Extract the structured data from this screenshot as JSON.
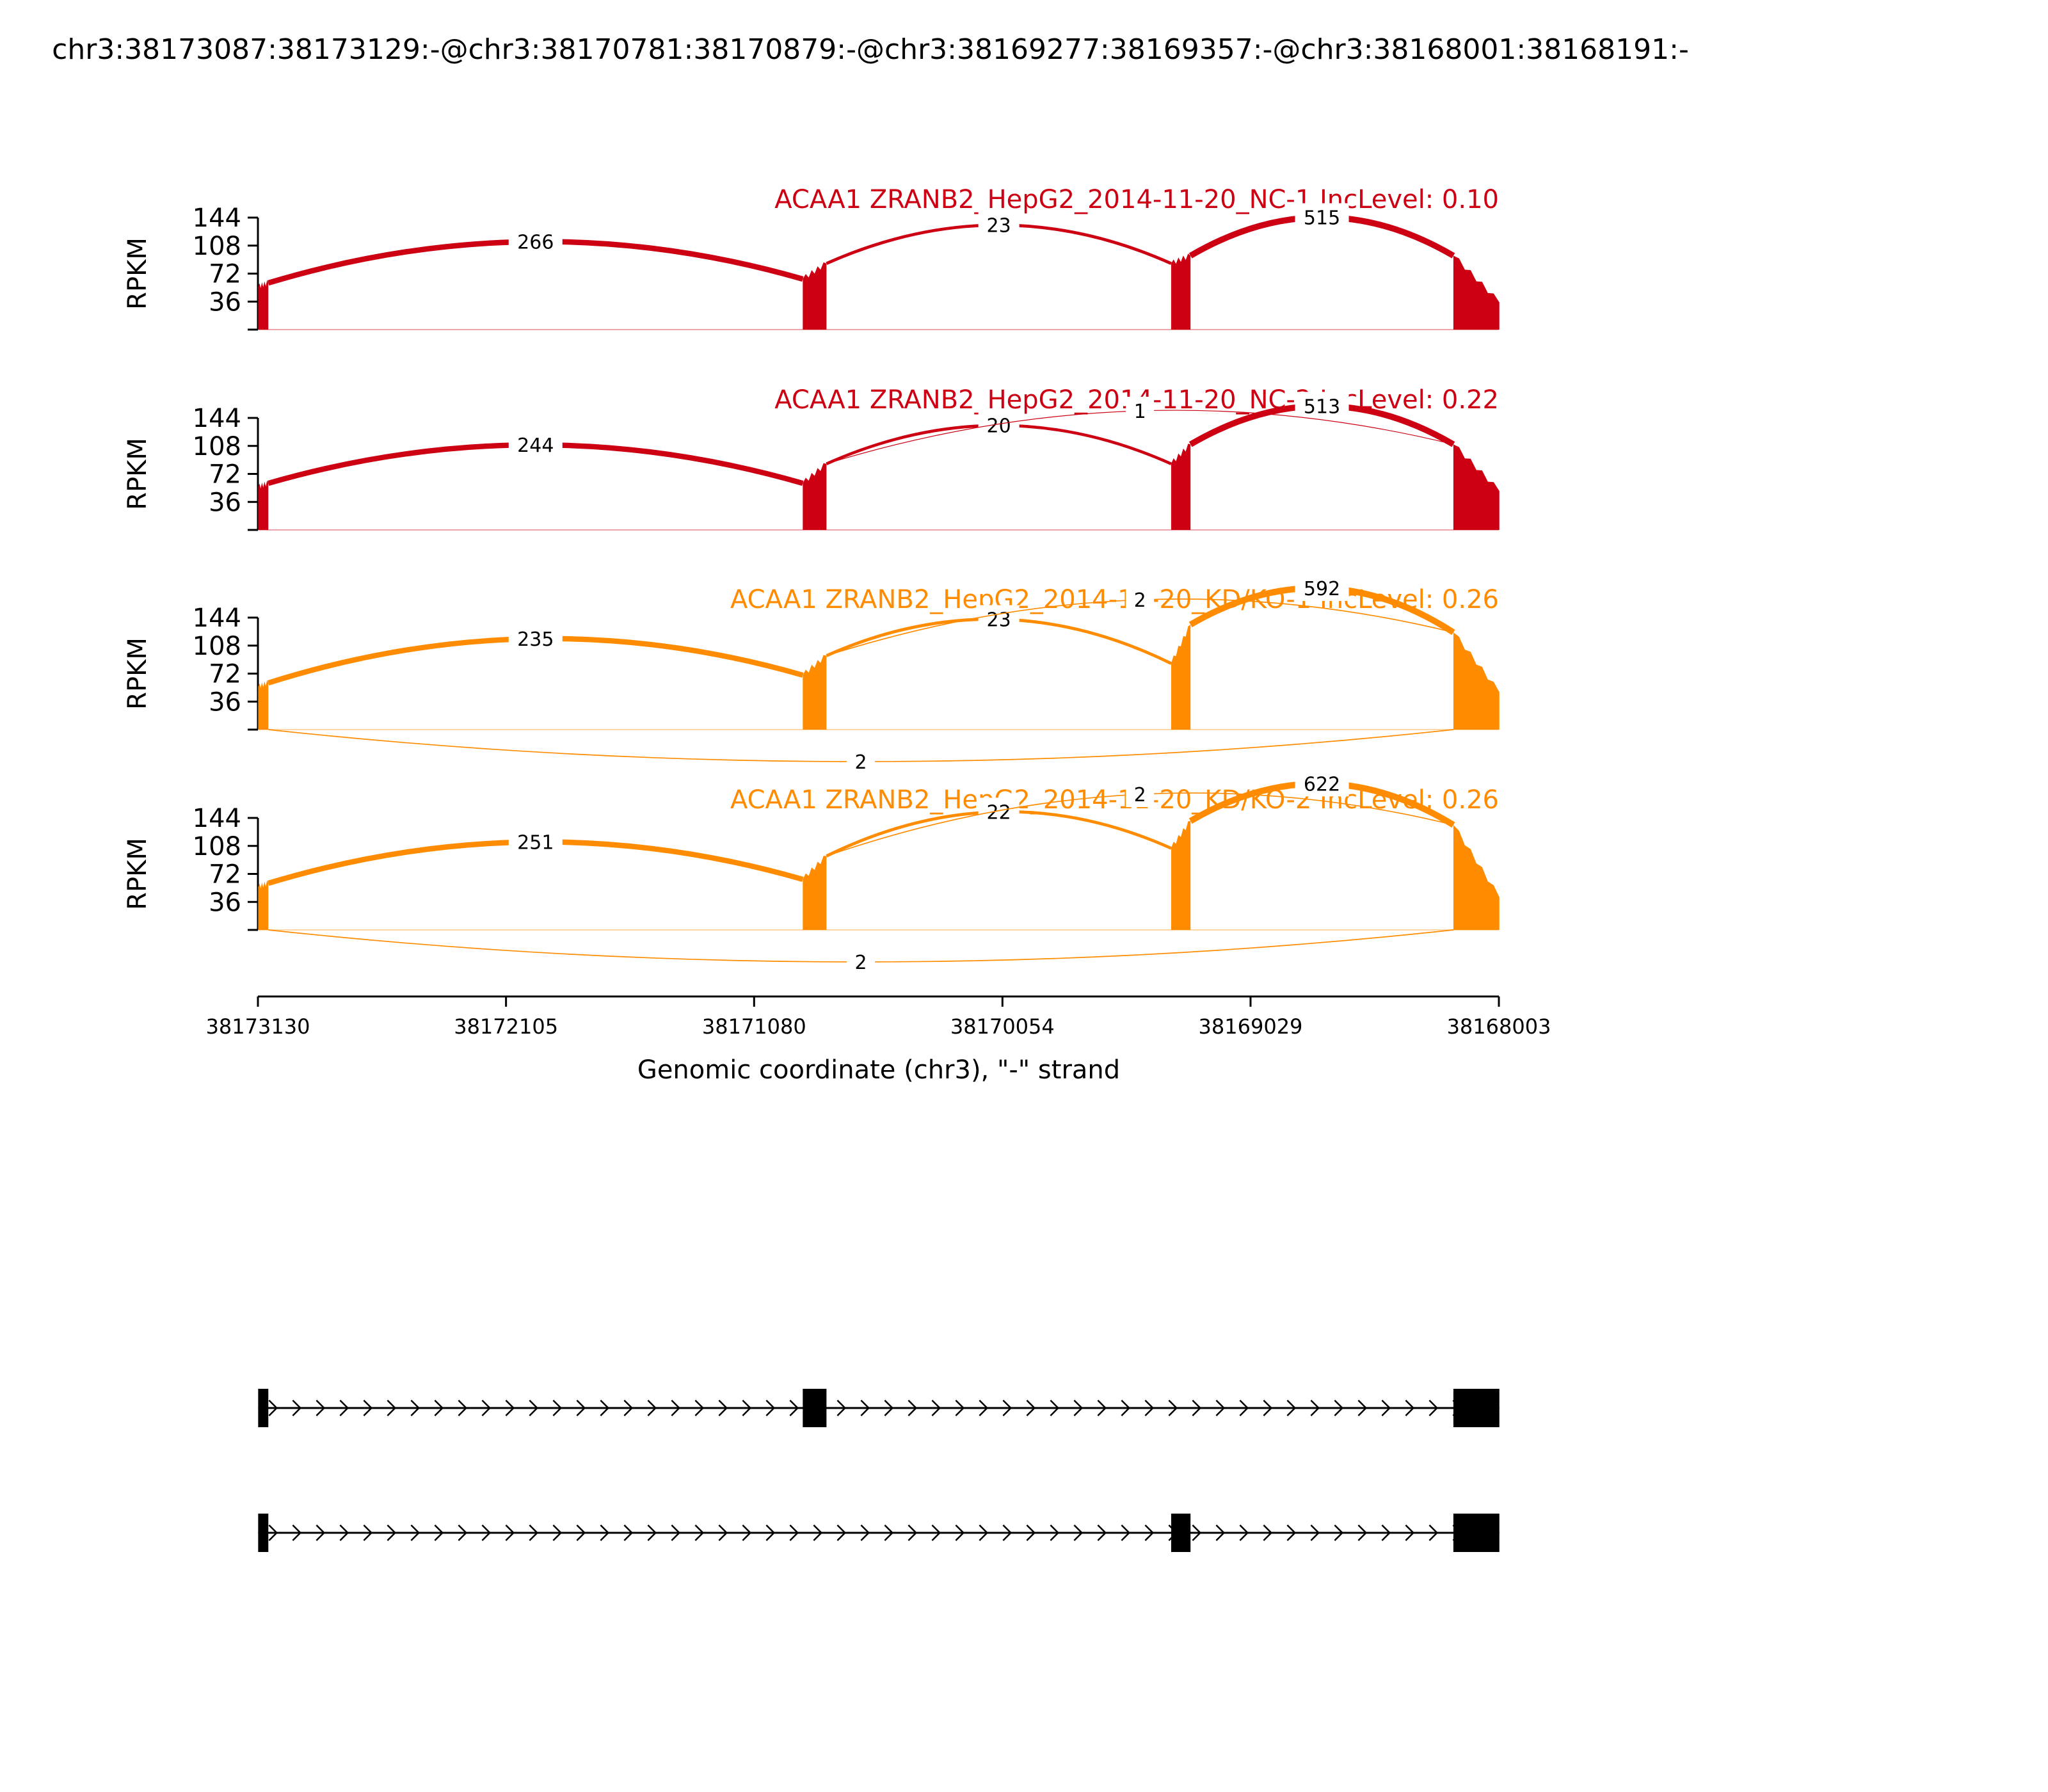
{
  "title": "chr3:38173087:38173129:-@chr3:38170781:38170879:-@chr3:38169277:38169357:-@chr3:38168001:38168191:-",
  "colors": {
    "nc": "#cc0012",
    "kd": "#ff8c00",
    "structure": "#000000"
  },
  "chart_data": {
    "type": "sashimi",
    "xlabel": "Genomic coordinate (chr3), \"-\" strand",
    "ylabel": "RPKM",
    "xlim": [
      38173130,
      38168003
    ],
    "x_ticks": [
      38173130,
      38172105,
      38171080,
      38170054,
      38169029,
      38168003
    ],
    "x_tick_labels": [
      "38173130",
      "38172105",
      "38171080",
      "38170054",
      "38169029",
      "38168003"
    ],
    "ylim": [
      0,
      144
    ],
    "y_ticks": [
      36,
      72,
      108,
      144
    ],
    "y_tick_labels": [
      "36",
      "72",
      "108",
      "144"
    ],
    "exons": [
      {
        "start": 38173129,
        "end": 38173087
      },
      {
        "start": 38170879,
        "end": 38170781
      },
      {
        "start": 38169357,
        "end": 38169277
      },
      {
        "start": 38168191,
        "end": 38168001
      }
    ],
    "tracks": [
      {
        "label": "ACAA1 ZRANB2_HepG2_2014-11-20_NC-1 IncLevel: 0.10",
        "color": "nc",
        "exon_heights": [
          [
            55,
            60
          ],
          [
            65,
            85
          ],
          [
            85,
            95
          ],
          [
            95,
            35
          ]
        ],
        "junctions": [
          {
            "from": 38173087,
            "to": 38170879,
            "count": 266,
            "label": "266",
            "side": "above"
          },
          {
            "from": 38170781,
            "to": 38169357,
            "count": 23,
            "label": "23",
            "side": "above"
          },
          {
            "from": 38169277,
            "to": 38168191,
            "count": 515,
            "label": "515",
            "side": "above"
          }
        ]
      },
      {
        "label": "ACAA1 ZRANB2_HepG2_2014-11-20_NC-2 IncLevel: 0.22",
        "color": "nc",
        "exon_heights": [
          [
            55,
            60
          ],
          [
            60,
            85
          ],
          [
            85,
            110
          ],
          [
            110,
            50
          ]
        ],
        "junctions": [
          {
            "from": 38173087,
            "to": 38170879,
            "count": 244,
            "label": "244",
            "side": "above"
          },
          {
            "from": 38170781,
            "to": 38169357,
            "count": 20,
            "label": "20",
            "side": "above"
          },
          {
            "from": 38169277,
            "to": 38168191,
            "count": 513,
            "label": "513",
            "side": "above"
          },
          {
            "from": 38170781,
            "to": 38168191,
            "count": 1,
            "label": "1",
            "side": "above"
          }
        ]
      },
      {
        "label": "ACAA1 ZRANB2_HepG2_2014-11-20_KD/KO-1 IncLevel: 0.26",
        "color": "kd",
        "exon_heights": [
          [
            55,
            60
          ],
          [
            70,
            95
          ],
          [
            85,
            135
          ],
          [
            125,
            48
          ]
        ],
        "junctions": [
          {
            "from": 38173087,
            "to": 38170879,
            "count": 235,
            "label": "235",
            "side": "above"
          },
          {
            "from": 38170781,
            "to": 38169357,
            "count": 23,
            "label": "23",
            "side": "above"
          },
          {
            "from": 38169277,
            "to": 38168191,
            "count": 592,
            "label": "592",
            "side": "above"
          },
          {
            "from": 38170781,
            "to": 38168191,
            "count": 2,
            "label": "2",
            "side": "above"
          },
          {
            "from": 38173087,
            "to": 38168191,
            "count": 2,
            "label": "2",
            "side": "below"
          }
        ]
      },
      {
        "label": "ACAA1 ZRANB2_HepG2_2014-11-20_KD/KO-2 IncLevel: 0.26",
        "color": "kd",
        "exon_heights": [
          [
            55,
            60
          ],
          [
            65,
            95
          ],
          [
            105,
            140
          ],
          [
            135,
            42
          ]
        ],
        "junctions": [
          {
            "from": 38173087,
            "to": 38170879,
            "count": 251,
            "label": "251",
            "side": "above"
          },
          {
            "from": 38170781,
            "to": 38169357,
            "count": 22,
            "label": "22",
            "side": "above"
          },
          {
            "from": 38169277,
            "to": 38168191,
            "count": 622,
            "label": "622",
            "side": "above"
          },
          {
            "from": 38170781,
            "to": 38168191,
            "count": 2,
            "label": "2",
            "side": "above"
          },
          {
            "from": 38173087,
            "to": 38168191,
            "count": 2,
            "label": "2",
            "side": "below"
          }
        ]
      }
    ],
    "isoforms": [
      {
        "exons": [
          0,
          1,
          3
        ]
      },
      {
        "exons": [
          0,
          2,
          3
        ]
      }
    ]
  }
}
